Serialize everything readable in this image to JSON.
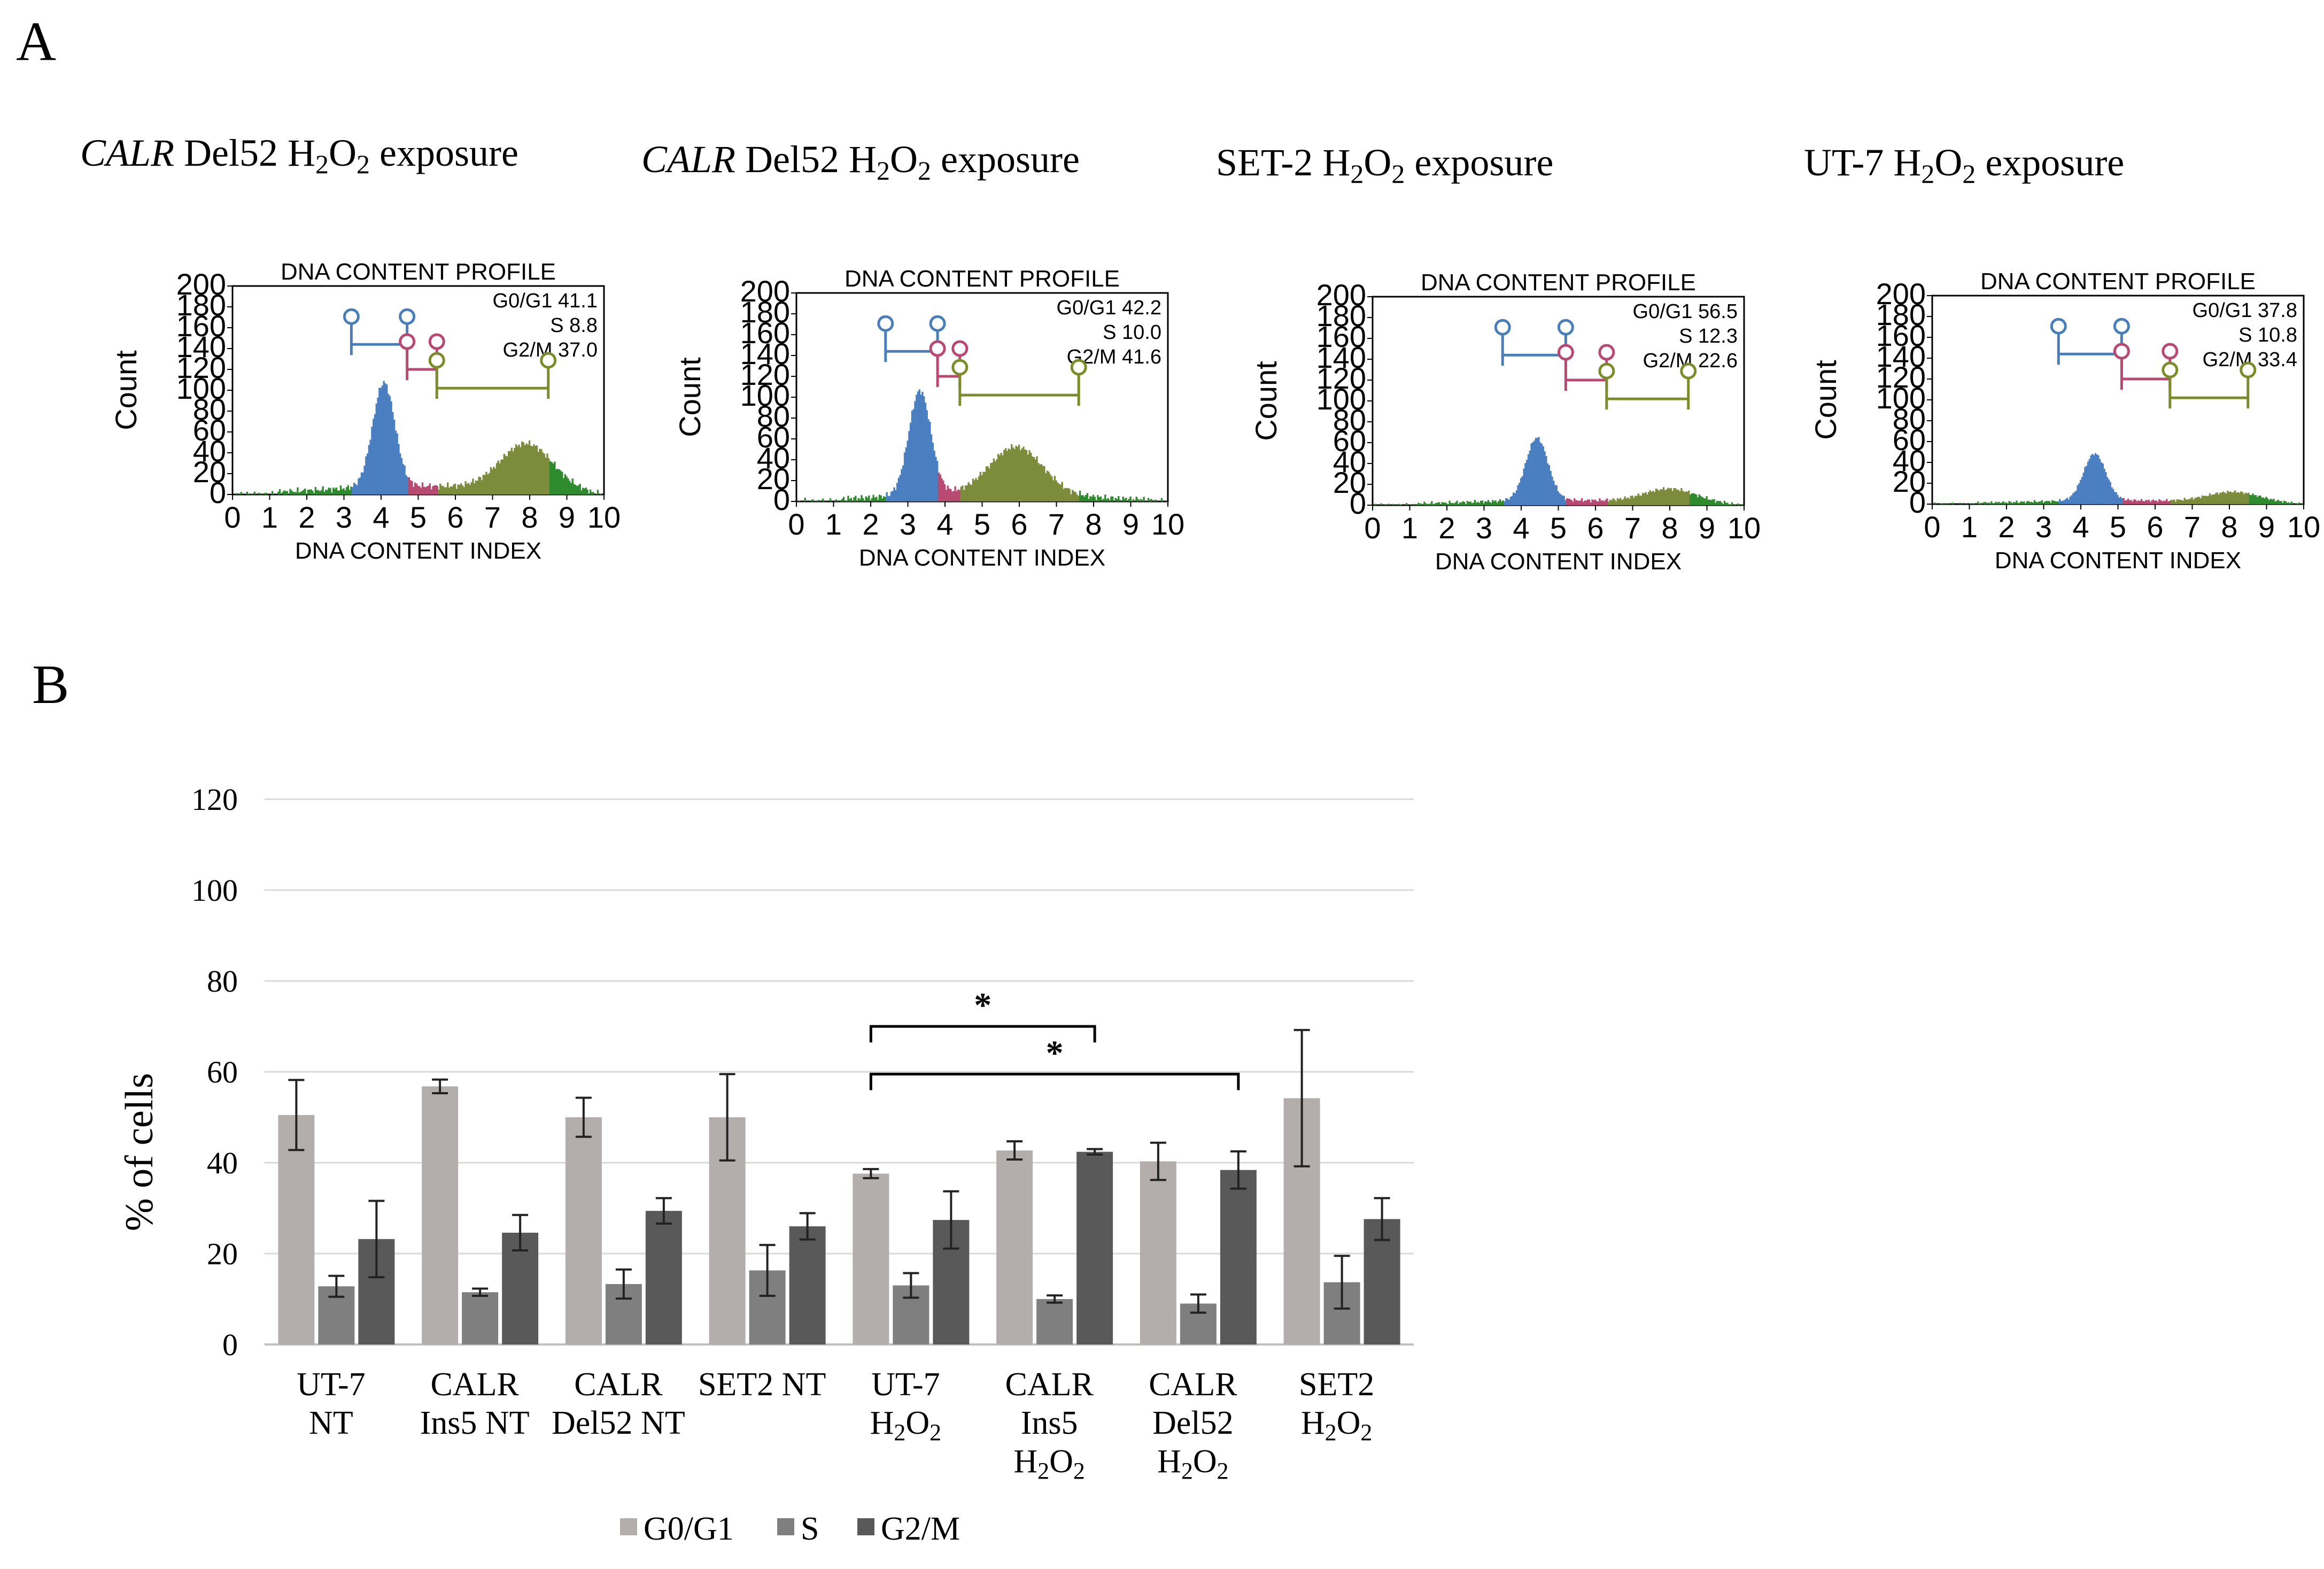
{
  "panel_labels": {
    "a": "A",
    "b": "B"
  },
  "flow_panels": [
    {
      "title_italic": "CALR",
      "title_main": "Del52 H",
      "title_sub1": "2",
      "title_mid": "O",
      "title_sub2": "2",
      "title_end": " exposure",
      "flow_title": "DNA CONTENT PROFILE",
      "ylabel": "Count",
      "xlabel": "DNA CONTENT INDEX",
      "stats": [
        "G0/G1 41.1",
        "S 8.8",
        "G2/M 37.0"
      ],
      "peak": 100,
      "gates": {
        "g1": [
          3.2,
          4.7
        ],
        "s": [
          4.7,
          5.5
        ],
        "g2": [
          5.5,
          8.5
        ]
      }
    },
    {
      "title_italic": "CALR",
      "title_main": "Del52 H",
      "title_sub1": "2",
      "title_mid": "O",
      "title_sub2": "2",
      "title_end": " exposure",
      "flow_title": "DNA CONTENT PROFILE",
      "ylabel": "Count",
      "xlabel": "DNA CONTENT INDEX",
      "stats": [
        "G0/G1 42.2",
        "S 10.0",
        "G2/M 41.6"
      ],
      "peak": 100,
      "gates": {
        "g1": [
          2.4,
          3.8
        ],
        "s": [
          3.8,
          4.4
        ],
        "g2": [
          4.4,
          7.6
        ]
      }
    },
    {
      "title_italic": "",
      "title_main": "SET-2 H",
      "title_sub1": "2",
      "title_mid": "O",
      "title_sub2": "2",
      "title_end": " exposure",
      "flow_title": "DNA CONTENT PROFILE",
      "ylabel": "Count",
      "xlabel": "DNA CONTENT INDEX",
      "stats": [
        "G0/G1 56.5",
        "S 12.3",
        "G2/M 22.6"
      ],
      "peak": 60,
      "gates": {
        "g1": [
          3.5,
          5.2
        ],
        "s": [
          5.2,
          6.3
        ],
        "g2": [
          6.3,
          8.5
        ]
      }
    },
    {
      "title_italic": "",
      "title_main": "UT-7 H",
      "title_sub1": "2",
      "title_mid": "O",
      "title_sub2": "2",
      "title_end": " exposure",
      "flow_title": "DNA CONTENT PROFILE",
      "ylabel": "Count",
      "xlabel": "DNA CONTENT INDEX",
      "stats": [
        "G0/G1 37.8",
        "S 10.8",
        "G2/M 33.4"
      ],
      "peak": 45,
      "gates": {
        "g1": [
          3.4,
          5.1
        ],
        "s": [
          5.1,
          6.4
        ],
        "g2": [
          6.4,
          8.5
        ]
      }
    }
  ],
  "flow_axes": {
    "y_ticks": [
      "0",
      "20",
      "40",
      "60",
      "80",
      "100",
      "120",
      "140",
      "160",
      "180",
      "200"
    ],
    "x_ticks": [
      "0",
      "1",
      "2",
      "3",
      "4",
      "5",
      "6",
      "7",
      "8",
      "9",
      "10"
    ]
  },
  "chart_data": {
    "type": "bar",
    "title": "",
    "xlabel": "",
    "ylabel": "% of cells",
    "ylim": [
      0,
      120
    ],
    "yticks": [
      "0",
      "20",
      "40",
      "60",
      "80",
      "100",
      "120"
    ],
    "grid": true,
    "categories": [
      [
        "UT-7",
        "NT"
      ],
      [
        "CALR",
        "Ins5 NT"
      ],
      [
        "CALR",
        "Del52 NT"
      ],
      [
        "SET2 NT"
      ],
      [
        "UT-7",
        "H2O2"
      ],
      [
        "CALR",
        "Ins5",
        "H2O2"
      ],
      [
        "CALR",
        "Del52",
        "H2O2"
      ],
      [
        "SET2",
        "H2O2"
      ]
    ],
    "series": [
      {
        "name": "G0/G1",
        "color": "#b3aeab",
        "values": [
          50.5,
          56.8,
          50,
          50,
          37.6,
          42.7,
          40.3,
          54.2
        ],
        "errors": [
          7.7,
          1.5,
          4.3,
          9.5,
          1,
          2,
          4.1,
          15
        ]
      },
      {
        "name": "S",
        "color": "#7f7f7f",
        "values": [
          12.8,
          11.5,
          13.3,
          16.3,
          13,
          10,
          9,
          13.7
        ],
        "errors": [
          2.3,
          0.8,
          3.2,
          5.6,
          2.7,
          0.8,
          2,
          5.8
        ]
      },
      {
        "name": "G2/M",
        "color": "#595959",
        "values": [
          23.2,
          24.6,
          29.4,
          26,
          27.4,
          42.4,
          38.4,
          27.6
        ],
        "errors": [
          8.4,
          3.9,
          2.8,
          2.9,
          6.3,
          0.6,
          4.1,
          4.6
        ]
      }
    ],
    "significance": [
      {
        "from": "UT-7 H2O2 G0/G1",
        "to": "CALR Ins5 H2O2 G2/M",
        "label": "*"
      },
      {
        "from": "UT-7 H2O2 G0/G1",
        "to": "CALR Del52 H2O2 G2/M",
        "label": "*"
      }
    ],
    "legend_position": "bottom-center"
  }
}
